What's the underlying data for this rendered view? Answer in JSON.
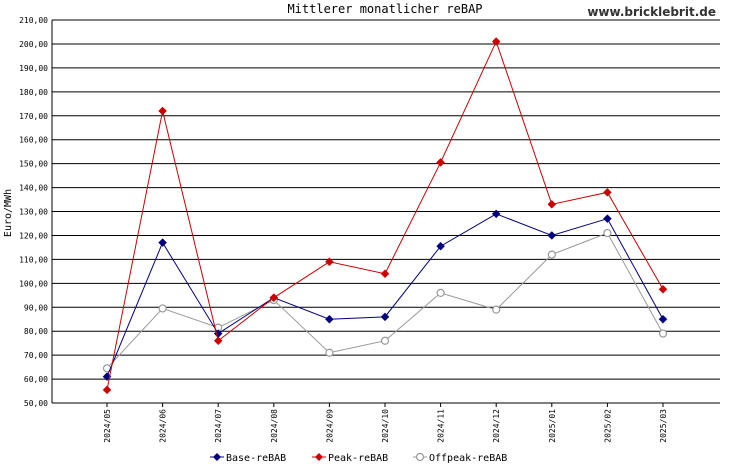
{
  "brand": "www.bricklebrit.de",
  "chart_data": {
    "type": "line",
    "title": "Mittlerer monatlicher reBAP",
    "ylabel": "Euro/MWh",
    "xlabel": "",
    "ylim": [
      50,
      210
    ],
    "y_ticks": [
      50,
      60,
      70,
      80,
      90,
      100,
      110,
      120,
      130,
      140,
      150,
      160,
      170,
      180,
      190,
      200,
      210
    ],
    "y_tick_labels": [
      "50,00",
      "60,00",
      "70,00",
      "80,00",
      "90,00",
      "100,00",
      "110,00",
      "120,00",
      "130,00",
      "140,00",
      "150,00",
      "160,00",
      "170,00",
      "180,00",
      "190,00",
      "200,00",
      "210,00"
    ],
    "grid": "horizontal",
    "legend_position": "bottom",
    "categories": [
      "2024/05",
      "2024/06",
      "2024/07",
      "2024/08",
      "2024/09",
      "2024/10",
      "2024/11",
      "2024/12",
      "2025/01",
      "2025/02",
      "2025/03"
    ],
    "series": [
      {
        "name": "Base-reBAB",
        "color": "#000080",
        "marker": "diamond",
        "values": [
          61,
          117,
          79,
          94,
          85,
          86,
          115.5,
          129,
          120,
          127,
          85
        ]
      },
      {
        "name": "Peak-reBAB",
        "color": "#cc0000",
        "marker": "diamond",
        "values": [
          55.5,
          172,
          76,
          94,
          109,
          104,
          150.5,
          201,
          133,
          138,
          97.5
        ]
      },
      {
        "name": "Offpeak-reBAB",
        "color": "#999999",
        "marker": "circle-open",
        "values": [
          64.5,
          89.5,
          81.5,
          93,
          71,
          76,
          96,
          89,
          112,
          121,
          79
        ]
      }
    ]
  }
}
